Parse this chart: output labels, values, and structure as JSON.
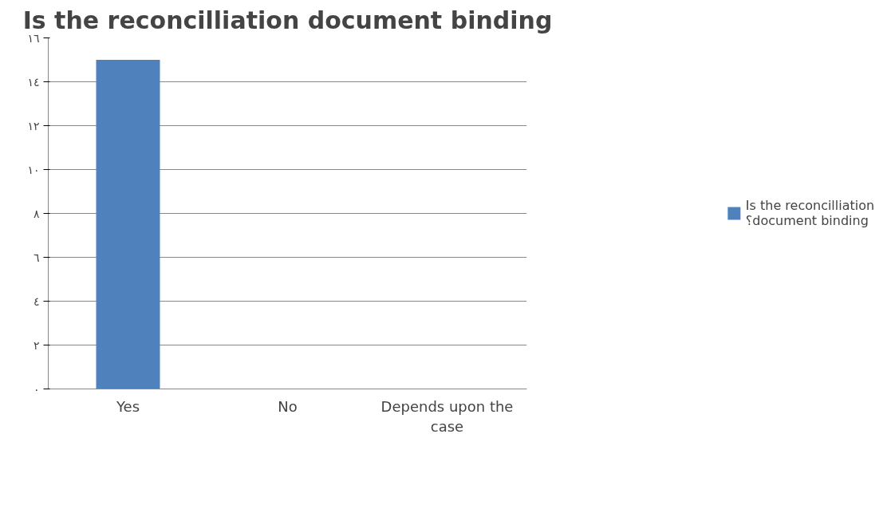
{
  "chart_data": {
    "type": "bar",
    "title": "Is the reconcilliation document binding",
    "categories": [
      "Yes",
      "No",
      "Depends upon the case"
    ],
    "series": [
      {
        "name": "Is the reconcilliation ؟document binding",
        "color": "#4f81bd",
        "values": [
          15,
          0,
          0
        ]
      }
    ],
    "ylim": [
      0,
      16
    ],
    "yticks": [
      {
        "value": 0,
        "label": "٠"
      },
      {
        "value": 2,
        "label": "٢"
      },
      {
        "value": 4,
        "label": "٤"
      },
      {
        "value": 6,
        "label": "٦"
      },
      {
        "value": 8,
        "label": "٨"
      },
      {
        "value": 10,
        "label": "١٠"
      },
      {
        "value": 12,
        "label": "١٢"
      },
      {
        "value": 14,
        "label": "١٤"
      },
      {
        "value": 16,
        "label": "١٦"
      }
    ],
    "grid": "y",
    "legend": "right"
  }
}
